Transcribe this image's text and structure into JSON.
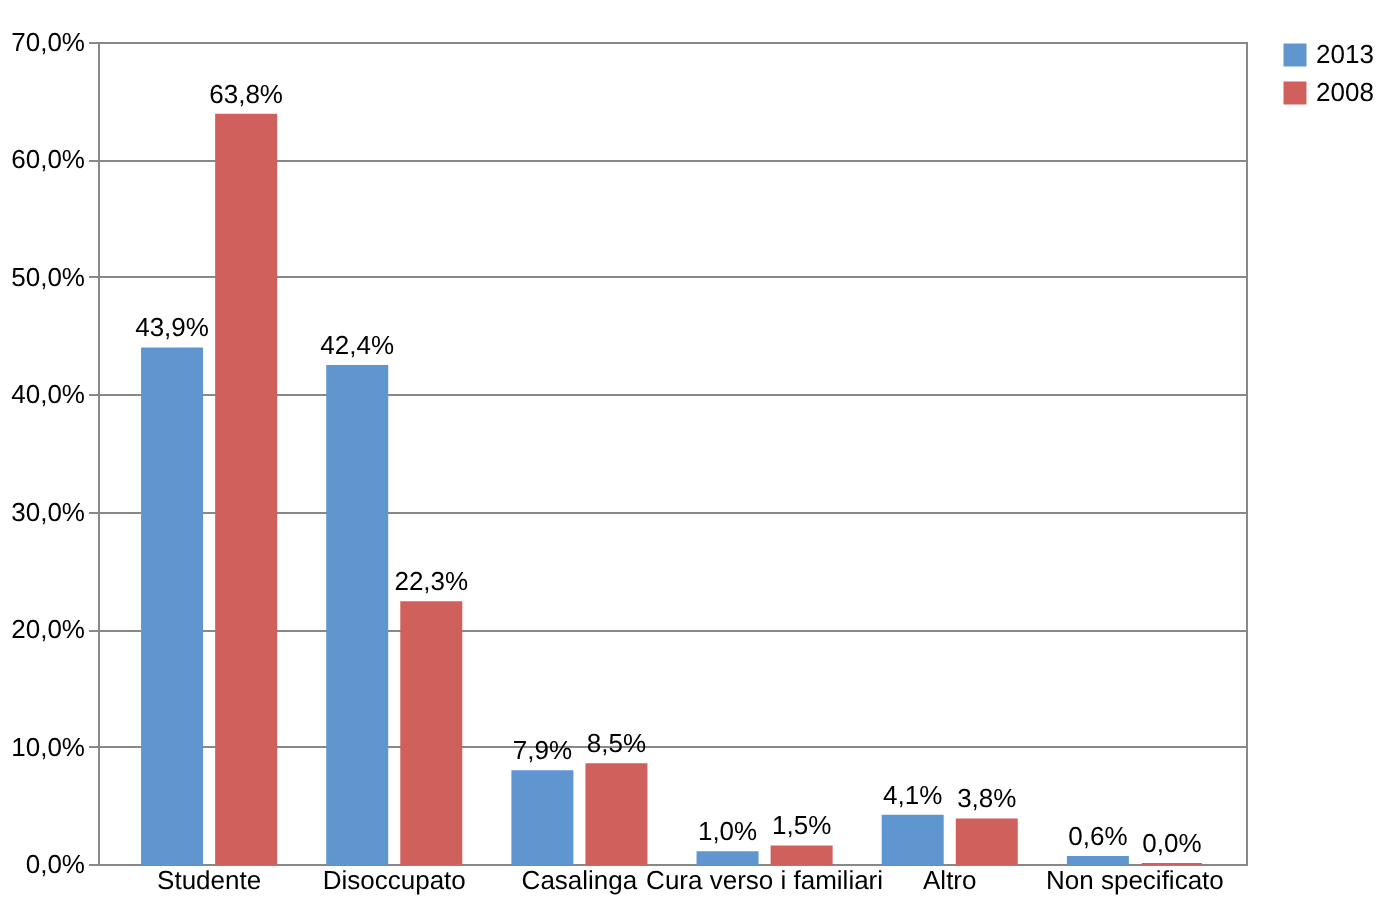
{
  "chart_data": {
    "type": "bar",
    "categories": [
      "Studente",
      "Disoccupato",
      "Casalinga",
      "Cura verso i familiari",
      "Altro",
      "Non specificato"
    ],
    "series": [
      {
        "name": "2013",
        "color": "#5f96cf",
        "values": [
          43.9,
          42.4,
          7.9,
          1.0,
          4.1,
          0.6
        ],
        "value_labels": [
          "43,9%",
          "42,4%",
          "7,9%",
          "1,0%",
          "4,1%",
          "0,6%"
        ]
      },
      {
        "name": "2008",
        "color": "#d0605c",
        "values": [
          63.8,
          22.3,
          8.5,
          1.5,
          3.8,
          0.0
        ],
        "value_labels": [
          "63,8%",
          "22,3%",
          "8,5%",
          "1,5%",
          "3,8%",
          "0,0%"
        ]
      }
    ],
    "ylim": [
      0,
      70
    ],
    "yticks": [
      {
        "value": 0,
        "label": "0,0%"
      },
      {
        "value": 10,
        "label": "10,0%"
      },
      {
        "value": 20,
        "label": "20,0%"
      },
      {
        "value": 30,
        "label": "30,0%"
      },
      {
        "value": 40,
        "label": "40,0%"
      },
      {
        "value": 50,
        "label": "50,0%"
      },
      {
        "value": 60,
        "label": "60,0%"
      },
      {
        "value": 70,
        "label": "70,0%"
      }
    ],
    "grid": "y",
    "legend": "right"
  }
}
